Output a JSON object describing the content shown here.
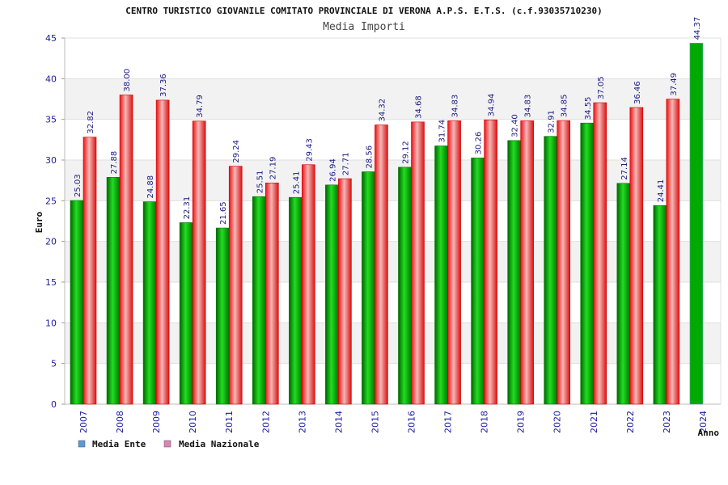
{
  "chart_data": {
    "type": "bar",
    "title": "CENTRO TURISTICO GIOVANILE COMITATO PROVINCIALE DI VERONA A.P.S. E.T.S. (c.f.93035710230)",
    "subtitle": "Media Importi",
    "xlabel": "Anno",
    "ylabel": "Euro",
    "ylim": [
      0,
      45
    ],
    "yticks": [
      0,
      5,
      10,
      15,
      20,
      25,
      30,
      35,
      40,
      45
    ],
    "grid": true,
    "legend_position": "bottom-left",
    "categories": [
      "2007",
      "2008",
      "2009",
      "2010",
      "2011",
      "2012",
      "2013",
      "2014",
      "2015",
      "2016",
      "2017",
      "2018",
      "2019",
      "2020",
      "2021",
      "2022",
      "2023",
      "2024"
    ],
    "series": [
      {
        "name": "Media Ente",
        "legend_color": "#5b9bd5",
        "color": "#00aa00",
        "values": [
          25.03,
          27.88,
          24.88,
          22.31,
          21.65,
          25.51,
          25.41,
          26.94,
          28.56,
          29.12,
          31.74,
          30.26,
          32.4,
          32.91,
          34.55,
          27.14,
          24.41,
          44.37
        ],
        "labels": [
          "25.03",
          "27.88",
          "24.88",
          "22.31",
          "21.65",
          "25.51",
          "25.41",
          "26.94",
          "28.56",
          "29.12",
          "31.74",
          "30.26",
          "32.40",
          "32.91",
          "34.55",
          "27.14",
          "24.41",
          "44.37"
        ]
      },
      {
        "name": "Media Nazionale",
        "legend_color": "#d986b4",
        "color": "#ee2222",
        "values": [
          32.82,
          38.0,
          37.36,
          34.79,
          29.24,
          27.19,
          29.43,
          27.71,
          34.32,
          34.68,
          34.83,
          34.94,
          34.83,
          34.85,
          37.05,
          36.46,
          37.49,
          null
        ],
        "labels": [
          "32.82",
          "38.00",
          "37.36",
          "34.79",
          "29.24",
          "27.19",
          "29.43",
          "27.71",
          "34.32",
          "34.68",
          "34.83",
          "34.94",
          "34.83",
          "34.85",
          "37.05",
          "36.46",
          "37.49",
          null
        ]
      }
    ]
  }
}
